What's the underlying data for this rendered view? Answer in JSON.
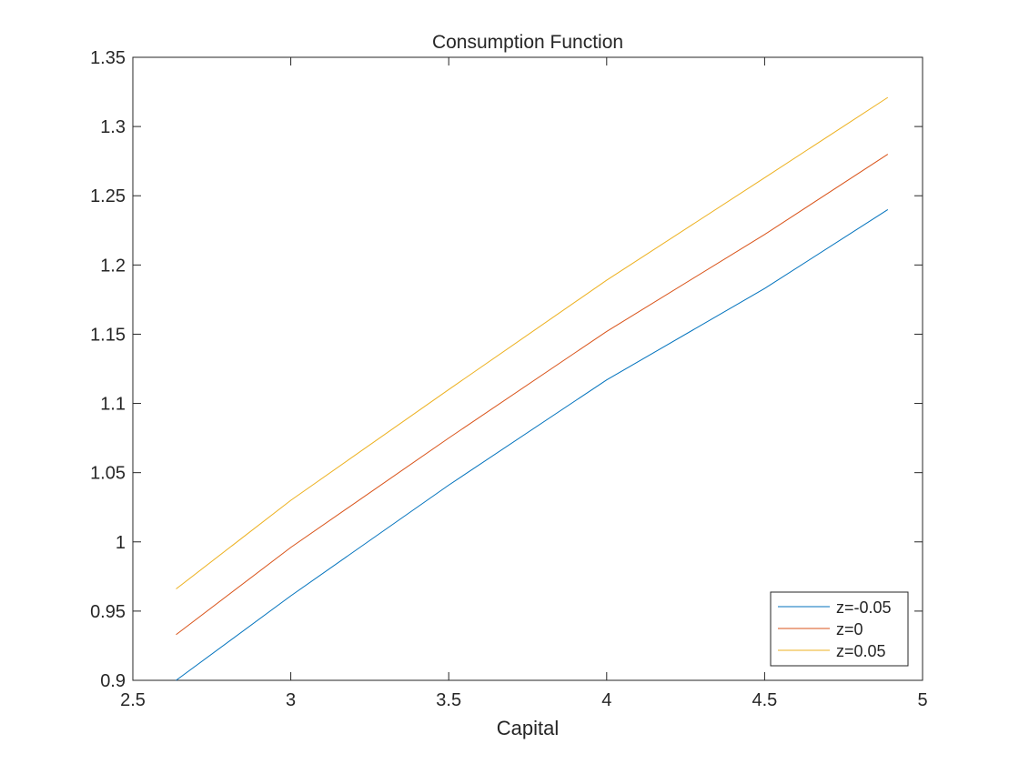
{
  "chart_data": {
    "type": "line",
    "title": "Consumption Function",
    "xlabel": "Capital",
    "ylabel": "",
    "xlim": [
      2.5,
      5
    ],
    "ylim": [
      0.9,
      1.35
    ],
    "xticks": [
      "2.5",
      "3",
      "3.5",
      "4",
      "4.5",
      "5"
    ],
    "yticks": [
      "0.9",
      "0.95",
      "1",
      "1.05",
      "1.1",
      "1.15",
      "1.2",
      "1.25",
      "1.3",
      "1.35"
    ],
    "grid": false,
    "legend_position": "bottom-right",
    "series": [
      {
        "name": "z=-0.05",
        "color": "#0072BD",
        "x": [
          2.637,
          3.0,
          3.5,
          4.0,
          4.5,
          4.89
        ],
        "y": [
          0.9,
          0.961,
          1.041,
          1.117,
          1.183,
          1.24
        ]
      },
      {
        "name": "z=0",
        "color": "#D95319",
        "x": [
          2.637,
          3.0,
          3.5,
          4.0,
          4.5,
          4.89
        ],
        "y": [
          0.933,
          0.996,
          1.075,
          1.152,
          1.222,
          1.28
        ]
      },
      {
        "name": "z=0.05",
        "color": "#EDB120",
        "x": [
          2.637,
          3.0,
          3.5,
          4.0,
          4.5,
          4.89
        ],
        "y": [
          0.966,
          1.03,
          1.11,
          1.189,
          1.263,
          1.321
        ]
      }
    ]
  }
}
